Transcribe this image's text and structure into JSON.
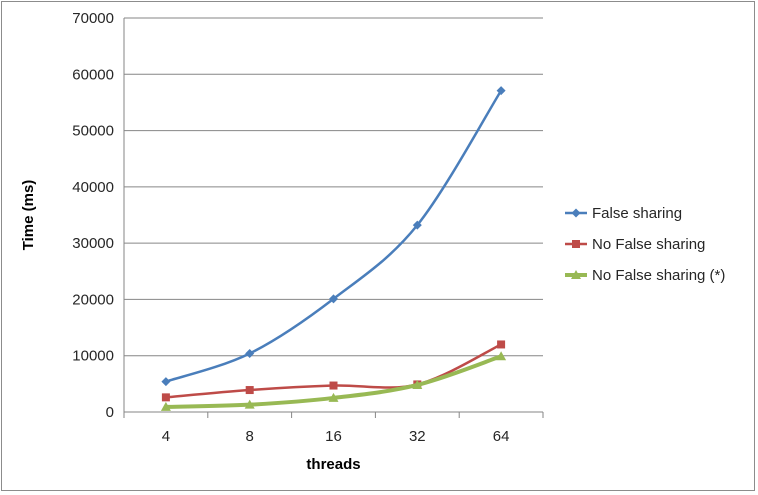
{
  "chart_data": {
    "type": "line",
    "title": "",
    "xlabel": "threads",
    "ylabel": "Time (ms)",
    "categories": [
      "4",
      "8",
      "16",
      "32",
      "64"
    ],
    "ylim": [
      0,
      70000
    ],
    "yticks": [
      0,
      10000,
      20000,
      30000,
      40000,
      50000,
      60000,
      70000
    ],
    "grid": true,
    "legend_position": "right",
    "series": [
      {
        "name": "False sharing",
        "values": [
          5400,
          10400,
          20100,
          33200,
          57100
        ],
        "color": "#4a7ebb",
        "marker": "diamond"
      },
      {
        "name": "No False sharing",
        "values": [
          2600,
          3900,
          4700,
          4900,
          12000
        ],
        "color": "#be4b48",
        "marker": "square"
      },
      {
        "name": "No False sharing (*)",
        "values": [
          900,
          1300,
          2500,
          4800,
          9900
        ],
        "color": "#98b954",
        "marker": "triangle"
      }
    ]
  }
}
